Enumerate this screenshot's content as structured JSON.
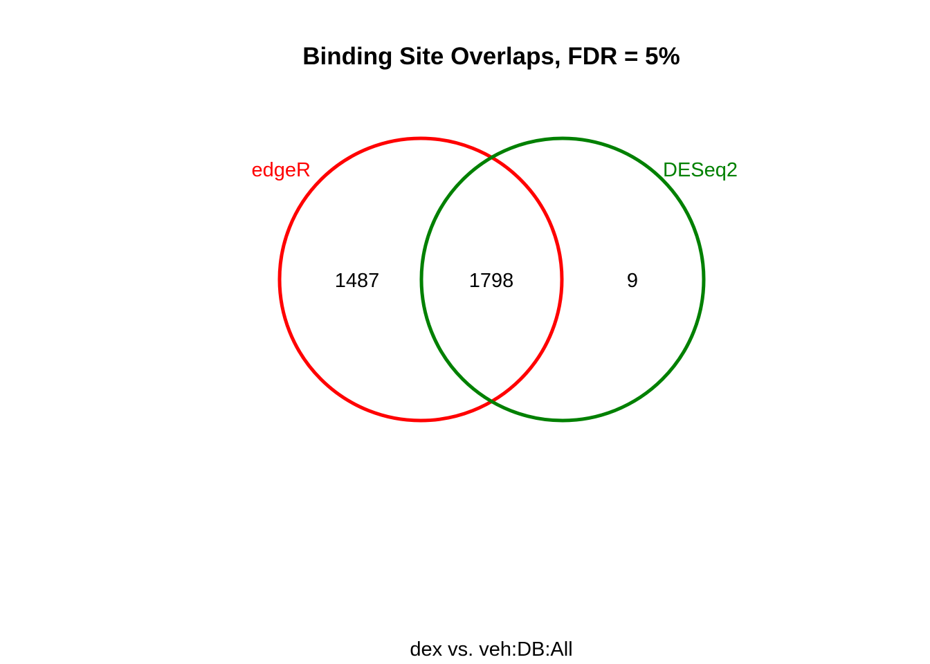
{
  "chart_data": {
    "type": "venn",
    "title": "Binding Site Overlaps, FDR = 5%",
    "subtitle": "dex vs. veh:DB:All",
    "sets": [
      {
        "name": "edgeR",
        "color": "#ff0000"
      },
      {
        "name": "DESeq2",
        "color": "#008000"
      }
    ],
    "regions": [
      {
        "sets": [
          "edgeR"
        ],
        "count": "1487"
      },
      {
        "sets": [
          "edgeR",
          "DESeq2"
        ],
        "count": "1798"
      },
      {
        "sets": [
          "DESeq2"
        ],
        "count": "9"
      }
    ]
  }
}
